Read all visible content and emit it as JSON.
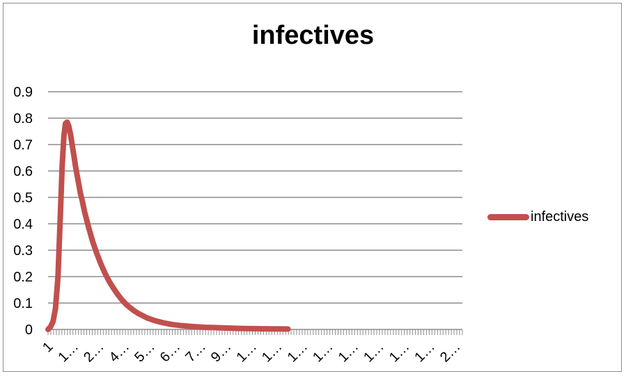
{
  "chart_data": {
    "type": "line",
    "title": "infectives",
    "xlabel": "",
    "ylabel": "",
    "ylim": [
      0,
      0.9
    ],
    "y_ticks": [
      "0",
      "0.1",
      "0.2",
      "0.3",
      "0.4",
      "0.5",
      "0.6",
      "0.7",
      "0.8",
      "0.9"
    ],
    "x_tick_labels": [
      "1",
      "1…",
      "2…",
      "4…",
      "5…",
      "6…",
      "7…",
      "9…",
      "1…",
      "1…",
      "1…",
      "1…",
      "1…",
      "1…",
      "1…",
      "1…",
      "2…"
    ],
    "grid": true,
    "legend_position": "right",
    "series": [
      {
        "name": "infectives",
        "color": "#c0504d",
        "x": [
          1,
          4,
          7,
          10,
          13,
          16,
          18,
          20,
          22,
          24,
          26,
          28,
          30,
          32,
          34,
          36,
          38,
          40,
          42,
          45,
          50,
          55,
          60,
          65,
          70,
          75,
          80,
          85,
          90,
          95,
          100,
          105,
          110,
          115,
          120,
          130,
          140,
          150,
          160,
          170,
          180,
          190,
          200,
          210,
          220,
          230,
          240,
          250,
          260,
          270,
          280,
          290
        ],
        "values": [
          0.0,
          0.01,
          0.03,
          0.08,
          0.2,
          0.45,
          0.62,
          0.73,
          0.78,
          0.785,
          0.77,
          0.74,
          0.7,
          0.66,
          0.62,
          0.585,
          0.55,
          0.515,
          0.49,
          0.445,
          0.385,
          0.33,
          0.285,
          0.245,
          0.21,
          0.18,
          0.155,
          0.132,
          0.112,
          0.095,
          0.082,
          0.07,
          0.06,
          0.052,
          0.044,
          0.033,
          0.025,
          0.019,
          0.015,
          0.012,
          0.01,
          0.008,
          0.007,
          0.006,
          0.005,
          0.004,
          0.0035,
          0.003,
          0.0025,
          0.002,
          0.002,
          0.0015
        ]
      }
    ]
  }
}
